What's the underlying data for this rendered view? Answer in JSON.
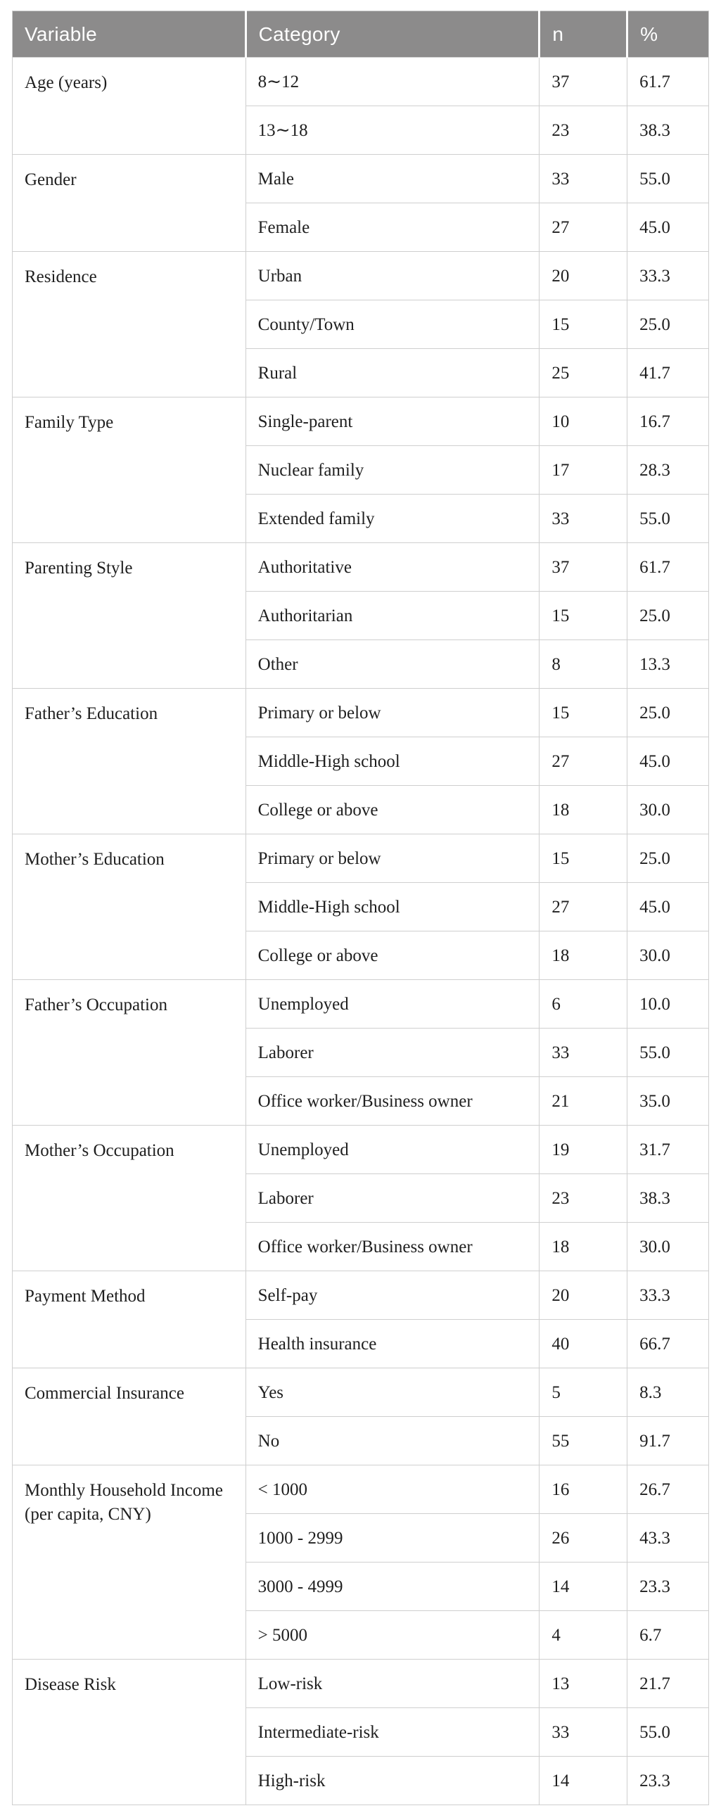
{
  "table": {
    "headers": [
      "Variable",
      "Category",
      "n",
      "%"
    ],
    "groups": [
      {
        "variable": "Age (years)",
        "rows": [
          {
            "category": "8∼12",
            "n": "37",
            "pct": "61.7"
          },
          {
            "category": "13∼18",
            "n": "23",
            "pct": "38.3"
          }
        ]
      },
      {
        "variable": "Gender",
        "rows": [
          {
            "category": "Male",
            "n": "33",
            "pct": "55.0"
          },
          {
            "category": "Female",
            "n": "27",
            "pct": "45.0"
          }
        ]
      },
      {
        "variable": "Residence",
        "rows": [
          {
            "category": "Urban",
            "n": "20",
            "pct": "33.3"
          },
          {
            "category": "County/Town",
            "n": "15",
            "pct": "25.0"
          },
          {
            "category": "Rural",
            "n": "25",
            "pct": "41.7"
          }
        ]
      },
      {
        "variable": "Family Type",
        "rows": [
          {
            "category": "Single-parent",
            "n": "10",
            "pct": "16.7"
          },
          {
            "category": "Nuclear family",
            "n": "17",
            "pct": "28.3"
          },
          {
            "category": "Extended family",
            "n": "33",
            "pct": "55.0"
          }
        ]
      },
      {
        "variable": "Parenting Style",
        "rows": [
          {
            "category": "Authoritative",
            "n": "37",
            "pct": "61.7"
          },
          {
            "category": "Authoritarian",
            "n": "15",
            "pct": "25.0"
          },
          {
            "category": "Other",
            "n": "8",
            "pct": "13.3"
          }
        ]
      },
      {
        "variable": "Father’s Education",
        "rows": [
          {
            "category": "Primary or below",
            "n": "15",
            "pct": "25.0"
          },
          {
            "category": "Middle-High school",
            "n": "27",
            "pct": "45.0"
          },
          {
            "category": "College or above",
            "n": "18",
            "pct": "30.0"
          }
        ]
      },
      {
        "variable": "Mother’s Education",
        "rows": [
          {
            "category": "Primary or below",
            "n": "15",
            "pct": "25.0"
          },
          {
            "category": "Middle-High school",
            "n": "27",
            "pct": "45.0"
          },
          {
            "category": "College or above",
            "n": "18",
            "pct": "30.0"
          }
        ]
      },
      {
        "variable": "Father’s Occupation",
        "rows": [
          {
            "category": "Unemployed",
            "n": "6",
            "pct": "10.0"
          },
          {
            "category": "Laborer",
            "n": "33",
            "pct": "55.0"
          },
          {
            "category": "Office worker/Business owner",
            "n": "21",
            "pct": "35.0"
          }
        ]
      },
      {
        "variable": "Mother’s Occupation",
        "rows": [
          {
            "category": "Unemployed",
            "n": "19",
            "pct": "31.7"
          },
          {
            "category": "Laborer",
            "n": "23",
            "pct": "38.3"
          },
          {
            "category": "Office worker/Business owner",
            "n": "18",
            "pct": "30.0"
          }
        ]
      },
      {
        "variable": "Payment Method",
        "rows": [
          {
            "category": "Self-pay",
            "n": "20",
            "pct": "33.3"
          },
          {
            "category": "Health insurance",
            "n": "40",
            "pct": "66.7"
          }
        ]
      },
      {
        "variable": "Commercial Insurance",
        "rows": [
          {
            "category": "Yes",
            "n": "5",
            "pct": "8.3"
          },
          {
            "category": "No",
            "n": "55",
            "pct": "91.7"
          }
        ]
      },
      {
        "variable": "Monthly Household Income (per capita, CNY)",
        "rows": [
          {
            "category": "< 1000",
            "n": "16",
            "pct": "26.7"
          },
          {
            "category": "1000 - 2999",
            "n": "26",
            "pct": "43.3"
          },
          {
            "category": "3000 - 4999",
            "n": "14",
            "pct": "23.3"
          },
          {
            "category": "> 5000",
            "n": "4",
            "pct": "6.7"
          }
        ]
      },
      {
        "variable": "Disease Risk",
        "rows": [
          {
            "category": "Low-risk",
            "n": "13",
            "pct": "21.7"
          },
          {
            "category": "Intermediate-risk",
            "n": "33",
            "pct": "55.0"
          },
          {
            "category": "High-risk",
            "n": "14",
            "pct": "23.3"
          }
        ]
      }
    ]
  },
  "colors": {
    "header_bg": "#8c8b8b",
    "header_text": "#ffffff",
    "border": "#cfcfcf",
    "body_text": "#1f1f1f"
  }
}
